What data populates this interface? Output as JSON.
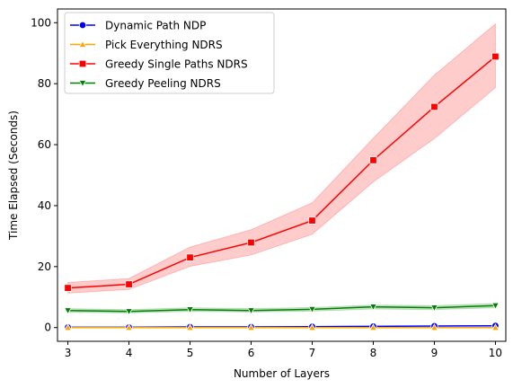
{
  "chart_data": {
    "type": "line",
    "xlabel": "Number of Layers",
    "ylabel": "Time Elapsed (Seconds)",
    "xlim": [
      2.83,
      10.17
    ],
    "ylim": [
      -4.5,
      104.5
    ],
    "xticks": [
      3,
      4,
      5,
      6,
      7,
      8,
      9,
      10
    ],
    "yticks": [
      0,
      20,
      40,
      60,
      80,
      100
    ],
    "grid": false,
    "legend_position": "top-left",
    "x": [
      3,
      4,
      5,
      6,
      7,
      8,
      9,
      10
    ],
    "series": [
      {
        "name": "Dynamic Path NDP",
        "color": "#0000ff",
        "marker": "circle",
        "values": [
          0.1,
          0.1,
          0.2,
          0.2,
          0.3,
          0.4,
          0.5,
          0.6
        ],
        "lower": [
          0.1,
          0.1,
          0.2,
          0.2,
          0.3,
          0.4,
          0.5,
          0.6
        ],
        "upper": [
          0.1,
          0.1,
          0.2,
          0.2,
          0.3,
          0.4,
          0.5,
          0.6
        ]
      },
      {
        "name": "Pick Everything NDRS",
        "color": "#ffa500",
        "marker": "triangle-up",
        "values": [
          0.0,
          0.0,
          0.0,
          0.0,
          0.0,
          0.0,
          0.0,
          0.0
        ],
        "lower": [
          0.0,
          0.0,
          0.0,
          0.0,
          0.0,
          0.0,
          0.0,
          0.0
        ],
        "upper": [
          0.0,
          0.0,
          0.0,
          0.0,
          0.0,
          0.0,
          0.0,
          0.0
        ]
      },
      {
        "name": "Greedy Single Paths NDRS",
        "color": "#ff0000",
        "marker": "square",
        "values": [
          13.0,
          14.2,
          23.0,
          27.9,
          35.1,
          54.9,
          72.4,
          88.9
        ],
        "lower": [
          11.3,
          12.5,
          20.1,
          23.8,
          30.6,
          47.8,
          62.0,
          78.7
        ],
        "upper": [
          14.8,
          16.1,
          26.4,
          32.1,
          40.9,
          62.1,
          82.8,
          99.6
        ]
      },
      {
        "name": "Greedy Peeling NDRS",
        "color": "#008000",
        "marker": "triangle-down",
        "values": [
          5.6,
          5.3,
          5.9,
          5.6,
          6.0,
          6.8,
          6.5,
          7.2
        ],
        "lower": [
          5.0,
          4.8,
          5.3,
          5.1,
          5.4,
          6.1,
          5.9,
          6.5
        ],
        "upper": [
          6.2,
          5.9,
          6.5,
          6.2,
          6.6,
          7.4,
          7.2,
          7.9
        ]
      }
    ]
  }
}
